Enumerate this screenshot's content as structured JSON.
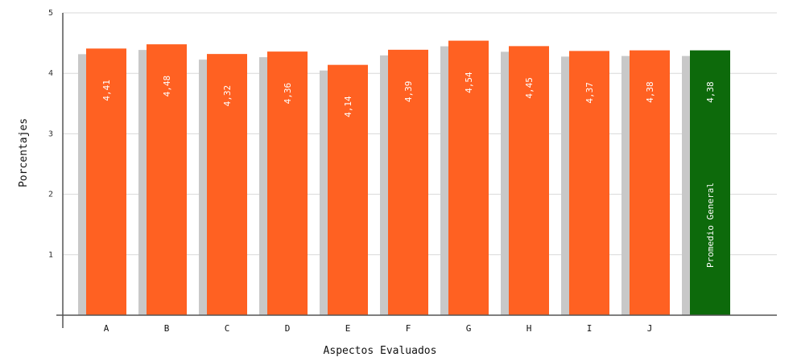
{
  "chart_data": {
    "type": "bar",
    "xlabel": "Aspectos Evaluados",
    "ylabel": "Porcentajes",
    "ylim": [
      0,
      5
    ],
    "yticks": [
      "1",
      "2",
      "3",
      "4",
      "5"
    ],
    "grid": true,
    "legend": "none",
    "categories": [
      "A",
      "B",
      "C",
      "D",
      "E",
      "F",
      "G",
      "H",
      "I",
      "J",
      ""
    ],
    "values": [
      4.41,
      4.48,
      4.32,
      4.36,
      4.14,
      4.39,
      4.54,
      4.45,
      4.37,
      4.38,
      4.38
    ],
    "value_labels": [
      "4,41",
      "4,48",
      "4,32",
      "4,36",
      "4,14",
      "4,39",
      "4,54",
      "4,45",
      "4,37",
      "4,38",
      "4,38"
    ],
    "summary_bar_label": "Promedio General",
    "colors": {
      "bar": "#ff6122",
      "summary_bar": "#0d6a0b",
      "shadow": "#c8c8c8",
      "grid": "#d8d8d8",
      "axis": "#555555"
    }
  }
}
